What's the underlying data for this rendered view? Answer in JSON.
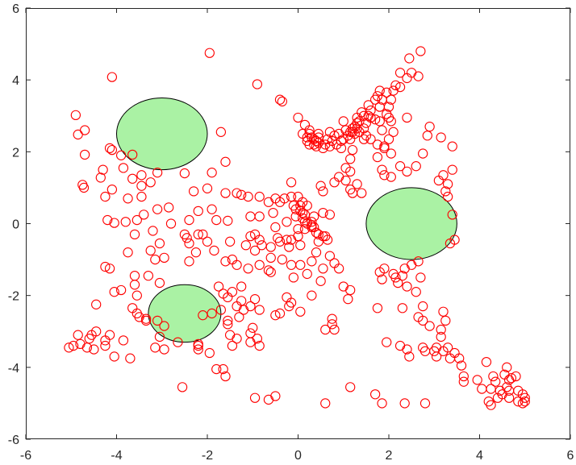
{
  "chart_data": {
    "type": "scatter",
    "title": "",
    "xlabel": "",
    "ylabel": "",
    "xlim": [
      -6,
      6
    ],
    "ylim": [
      -6,
      6
    ],
    "xticks": [
      "-6",
      "-4",
      "-2",
      "0",
      "2",
      "4",
      "6"
    ],
    "yticks": [
      "-6",
      "-4",
      "-2",
      "0",
      "2",
      "4",
      "6"
    ],
    "grid": false,
    "box": true,
    "colors": {
      "marker": "#ff0000",
      "ellipse_fill": "#aaf2a4",
      "ellipse_edge": "#000000",
      "axes": "#262626"
    },
    "obstacles": [
      {
        "name": "ellipse-1",
        "center": [
          -3.0,
          2.5
        ],
        "radius_x": 1.0,
        "radius_y": 1.0
      },
      {
        "name": "ellipse-2",
        "center": [
          2.5,
          0.0
        ],
        "radius_x": 1.0,
        "radius_y": 1.0
      },
      {
        "name": "ellipse-3",
        "center": [
          -2.5,
          -2.5
        ],
        "radius_x": 0.8,
        "radius_y": 0.8
      }
    ],
    "points": [
      [
        -1.95,
        4.75
      ],
      [
        -4.1,
        4.08
      ],
      [
        -0.9,
        3.88
      ],
      [
        -0.4,
        3.45
      ],
      [
        -0.35,
        3.4
      ],
      [
        -4.9,
        3.02
      ],
      [
        -4.7,
        2.6
      ],
      [
        -4.85,
        2.48
      ],
      [
        -1.7,
        2.55
      ],
      [
        -4.7,
        1.92
      ],
      [
        -4.15,
        2.1
      ],
      [
        -4.1,
        2.05
      ],
      [
        -3.9,
        1.9
      ],
      [
        -3.85,
        1.55
      ],
      [
        -3.65,
        1.92
      ],
      [
        -4.3,
        1.5
      ],
      [
        -4.35,
        1.28
      ],
      [
        -3.65,
        1.25
      ],
      [
        -3.45,
        1.35
      ],
      [
        -3.1,
        1.42
      ],
      [
        -2.5,
        1.4
      ],
      [
        -1.9,
        1.42
      ],
      [
        -1.6,
        1.72
      ],
      [
        -4.75,
        1.08
      ],
      [
        -4.72,
        1.0
      ],
      [
        -4.1,
        0.95
      ],
      [
        -3.45,
        1.05
      ],
      [
        -3.25,
        1.15
      ],
      [
        -1.35,
        0.85
      ],
      [
        -1.6,
        0.85
      ],
      [
        -2.0,
        0.98
      ],
      [
        -2.3,
        0.9
      ],
      [
        -2.85,
        0.45
      ],
      [
        -3.45,
        0.75
      ],
      [
        -4.25,
        0.75
      ],
      [
        -3.75,
        0.7
      ],
      [
        -3.1,
        0.4
      ],
      [
        -3.4,
        0.25
      ],
      [
        -3.55,
        0.1
      ],
      [
        -3.8,
        0.05
      ],
      [
        -4.2,
        0.1
      ],
      [
        -4.05,
        0.02
      ],
      [
        -2.8,
        0.0
      ],
      [
        -2.4,
        0.1
      ],
      [
        -1.9,
        0.4
      ],
      [
        -1.8,
        0.1
      ],
      [
        -1.55,
        0.08
      ],
      [
        -2.2,
        0.35
      ],
      [
        -2.2,
        -0.3
      ],
      [
        -2.5,
        -0.3
      ],
      [
        -2.45,
        -0.4
      ],
      [
        -2.4,
        -0.55
      ],
      [
        -2.1,
        -0.3
      ],
      [
        -2.0,
        -0.5
      ],
      [
        -1.85,
        -0.75
      ],
      [
        -2.25,
        -0.8
      ],
      [
        -2.4,
        -1.05
      ],
      [
        -1.5,
        -0.5
      ],
      [
        -3.2,
        -0.2
      ],
      [
        -3.05,
        -0.55
      ],
      [
        -3.25,
        -0.75
      ],
      [
        -3.15,
        -1.0
      ],
      [
        -2.95,
        -0.95
      ],
      [
        -3.6,
        -0.3
      ],
      [
        -3.75,
        -0.8
      ],
      [
        -4.25,
        -1.2
      ],
      [
        -4.15,
        -1.25
      ],
      [
        -3.6,
        -1.45
      ],
      [
        -3.3,
        -1.45
      ],
      [
        -3.05,
        -1.65
      ],
      [
        -3.6,
        -1.7
      ],
      [
        -3.55,
        -2.0
      ],
      [
        -3.9,
        -1.85
      ],
      [
        -4.05,
        -1.9
      ],
      [
        -4.45,
        -2.25
      ],
      [
        -3.65,
        -2.35
      ],
      [
        -3.55,
        -2.5
      ],
      [
        -3.5,
        -2.6
      ],
      [
        -3.35,
        -2.7
      ],
      [
        -3.35,
        -2.65
      ],
      [
        -3.1,
        -2.7
      ],
      [
        -2.95,
        -2.85
      ],
      [
        -3.05,
        -3.15
      ],
      [
        -3.85,
        -3.25
      ],
      [
        -4.15,
        -3.1
      ],
      [
        -4.25,
        -3.25
      ],
      [
        -4.45,
        -3.0
      ],
      [
        -4.55,
        -3.1
      ],
      [
        -4.6,
        -3.2
      ],
      [
        -4.5,
        -3.5
      ],
      [
        -4.25,
        -3.4
      ],
      [
        -4.05,
        -3.7
      ],
      [
        -4.65,
        -3.45
      ],
      [
        -4.85,
        -3.1
      ],
      [
        -4.95,
        -3.4
      ],
      [
        -5.05,
        -3.45
      ],
      [
        -4.8,
        -3.35
      ],
      [
        -3.7,
        -3.75
      ],
      [
        -3.15,
        -3.45
      ],
      [
        -2.95,
        -3.5
      ],
      [
        -2.2,
        -3.35
      ],
      [
        -2.2,
        -3.5
      ],
      [
        -2.2,
        -3.4
      ],
      [
        -1.95,
        -3.6
      ],
      [
        -2.65,
        -3.3
      ],
      [
        -2.55,
        -4.55
      ],
      [
        -1.8,
        -4.05
      ],
      [
        -1.65,
        -4.05
      ],
      [
        -1.6,
        -4.25
      ],
      [
        -1.9,
        -2.5
      ],
      [
        -2.1,
        -2.55
      ],
      [
        -1.7,
        -2.4
      ],
      [
        -1.55,
        -2.7
      ],
      [
        -1.55,
        -2.8
      ],
      [
        -1.5,
        -3.1
      ],
      [
        -1.35,
        -3.2
      ],
      [
        -1.45,
        -3.4
      ],
      [
        -1.05,
        -3.3
      ],
      [
        -1.05,
        -3.05
      ],
      [
        -0.9,
        -3.2
      ],
      [
        -0.85,
        -3.4
      ],
      [
        -1.3,
        -2.6
      ],
      [
        -1.35,
        -2.3
      ],
      [
        -1.55,
        -2.05
      ],
      [
        -1.65,
        -1.95
      ],
      [
        -1.45,
        -1.9
      ],
      [
        -1.25,
        -1.75
      ],
      [
        -1.25,
        -2.15
      ],
      [
        -1.05,
        -2.3
      ],
      [
        -0.95,
        -2.1
      ],
      [
        -0.85,
        -2.4
      ],
      [
        -0.5,
        -2.55
      ],
      [
        -0.4,
        -2.5
      ],
      [
        -0.2,
        -2.3
      ],
      [
        -0.25,
        -2.05
      ],
      [
        -0.1,
        -1.5
      ],
      [
        -0.15,
        -1.15
      ],
      [
        -0.35,
        -1.0
      ],
      [
        -0.6,
        -0.95
      ],
      [
        -0.85,
        -1.15
      ],
      [
        -0.65,
        -1.3
      ],
      [
        -0.6,
        -1.35
      ],
      [
        -1.1,
        -1.25
      ],
      [
        -1.35,
        -1.15
      ],
      [
        -1.45,
        -1.0
      ],
      [
        -1.6,
        -1.05
      ],
      [
        -1.75,
        -1.75
      ],
      [
        -1.15,
        -0.6
      ],
      [
        -0.95,
        -0.3
      ],
      [
        -0.85,
        -0.45
      ],
      [
        -0.8,
        -0.6
      ],
      [
        -0.95,
        -0.75
      ],
      [
        -1.05,
        -0.35
      ],
      [
        -0.6,
        -0.65
      ],
      [
        -0.45,
        -0.4
      ],
      [
        -0.5,
        -0.1
      ],
      [
        -0.25,
        0.05
      ],
      [
        -0.4,
        -0.5
      ],
      [
        -0.25,
        -0.45
      ],
      [
        -0.2,
        -0.65
      ],
      [
        -0.15,
        -0.45
      ],
      [
        0.0,
        -0.35
      ],
      [
        0.05,
        -0.6
      ],
      [
        -0.3,
        0.7
      ],
      [
        -0.4,
        0.6
      ],
      [
        -0.5,
        0.7
      ],
      [
        -0.65,
        0.6
      ],
      [
        -0.15,
        0.75
      ],
      [
        0.0,
        0.75
      ],
      [
        0.1,
        0.6
      ],
      [
        0.2,
        0.5
      ],
      [
        0.1,
        0.3
      ],
      [
        -0.05,
        0.4
      ],
      [
        -0.1,
        0.5
      ],
      [
        0.05,
        0.5
      ],
      [
        0.15,
        0.25
      ],
      [
        0.15,
        0.05
      ],
      [
        0.2,
        0.0
      ],
      [
        0.3,
        -0.05
      ],
      [
        0.35,
        -0.1
      ],
      [
        0.45,
        -0.3
      ],
      [
        0.55,
        -0.35
      ],
      [
        0.45,
        -0.5
      ],
      [
        0.3,
        -0.1
      ],
      [
        0.4,
        -0.25
      ],
      [
        0.65,
        -0.45
      ],
      [
        0.6,
        -0.35
      ],
      [
        0.55,
        0.3
      ],
      [
        0.7,
        0.25
      ],
      [
        0.35,
        0.2
      ],
      [
        0.3,
        0.05
      ],
      [
        0.15,
        -0.15
      ],
      [
        0.0,
        -0.15
      ],
      [
        0.05,
        0.35
      ],
      [
        0.1,
        0.15
      ],
      [
        -0.05,
        0.2
      ],
      [
        -0.15,
        1.15
      ],
      [
        -0.85,
        0.75
      ],
      [
        -1.1,
        0.75
      ],
      [
        -1.25,
        0.8
      ],
      [
        -1.05,
        0.2
      ],
      [
        -0.85,
        0.2
      ],
      [
        -0.55,
        0.3
      ],
      [
        0.55,
        0.9
      ],
      [
        0.5,
        1.05
      ],
      [
        0.8,
        1.15
      ],
      [
        0.9,
        1.3
      ],
      [
        1.05,
        1.2
      ],
      [
        1.15,
        1.45
      ],
      [
        1.05,
        1.55
      ],
      [
        1.15,
        0.95
      ],
      [
        1.2,
        0.85
      ],
      [
        1.4,
        0.85
      ],
      [
        1.3,
        1.1
      ],
      [
        1.15,
        1.8
      ],
      [
        1.2,
        2.05
      ],
      [
        1.15,
        2.35
      ],
      [
        1.2,
        2.55
      ],
      [
        1.3,
        2.65
      ],
      [
        1.35,
        2.85
      ],
      [
        1.3,
        2.95
      ],
      [
        1.4,
        3.1
      ],
      [
        1.55,
        3.3
      ],
      [
        1.7,
        3.45
      ],
      [
        1.85,
        3.45
      ],
      [
        1.8,
        3.25
      ],
      [
        1.6,
        3.15
      ],
      [
        1.55,
        3.0
      ],
      [
        1.5,
        2.8
      ],
      [
        1.45,
        2.65
      ],
      [
        1.5,
        2.45
      ],
      [
        1.6,
        2.35
      ],
      [
        1.75,
        2.2
      ],
      [
        1.9,
        2.15
      ],
      [
        2.0,
        2.35
      ],
      [
        2.1,
        2.55
      ],
      [
        2.05,
        2.85
      ],
      [
        1.95,
        3.05
      ],
      [
        2.0,
        3.25
      ],
      [
        2.05,
        3.45
      ],
      [
        2.1,
        3.7
      ],
      [
        2.25,
        3.8
      ],
      [
        2.4,
        4.05
      ],
      [
        2.5,
        4.2
      ],
      [
        2.45,
        4.6
      ],
      [
        2.7,
        4.8
      ],
      [
        2.65,
        4.1
      ],
      [
        2.25,
        4.2
      ],
      [
        2.15,
        3.85
      ],
      [
        1.95,
        3.65
      ],
      [
        1.8,
        3.7
      ],
      [
        1.75,
        3.55
      ],
      [
        2.0,
        2.95
      ],
      [
        1.8,
        2.85
      ],
      [
        1.85,
        2.6
      ],
      [
        1.9,
        2.1
      ],
      [
        2.05,
        1.95
      ],
      [
        1.75,
        1.85
      ],
      [
        1.85,
        1.5
      ],
      [
        1.9,
        1.35
      ],
      [
        2.05,
        1.3
      ],
      [
        2.25,
        1.6
      ],
      [
        2.4,
        1.45
      ],
      [
        2.6,
        1.6
      ],
      [
        2.75,
        1.95
      ],
      [
        2.85,
        2.45
      ],
      [
        2.9,
        2.7
      ],
      [
        2.4,
        2.95
      ],
      [
        3.15,
        2.4
      ],
      [
        3.4,
        2.15
      ],
      [
        3.4,
        1.5
      ],
      [
        3.2,
        1.35
      ],
      [
        3.1,
        1.2
      ],
      [
        3.3,
        1.1
      ],
      [
        3.25,
        0.9
      ],
      [
        3.3,
        0.75
      ],
      [
        3.4,
        0.25
      ],
      [
        3.45,
        -0.45
      ],
      [
        3.35,
        -0.55
      ],
      [
        2.65,
        -1.05
      ],
      [
        2.5,
        -1.15
      ],
      [
        2.35,
        -1.25
      ],
      [
        2.3,
        -1.45
      ],
      [
        2.15,
        -1.5
      ],
      [
        2.1,
        -1.4
      ],
      [
        1.9,
        -1.25
      ],
      [
        1.8,
        -1.35
      ],
      [
        1.85,
        -1.55
      ],
      [
        2.2,
        -1.65
      ],
      [
        2.4,
        -1.75
      ],
      [
        2.7,
        -1.5
      ],
      [
        2.6,
        -1.9
      ],
      [
        2.3,
        -2.35
      ],
      [
        1.75,
        -2.35
      ],
      [
        2.75,
        -2.3
      ],
      [
        2.65,
        -2.6
      ],
      [
        2.75,
        -2.7
      ],
      [
        2.9,
        -2.85
      ],
      [
        3.25,
        -2.7
      ],
      [
        3.2,
        -2.45
      ],
      [
        3.15,
        -2.95
      ],
      [
        3.15,
        -3.15
      ],
      [
        3.3,
        -3.45
      ],
      [
        3.2,
        -3.55
      ],
      [
        3.05,
        -3.7
      ],
      [
        3.0,
        -3.55
      ],
      [
        3.05,
        -3.45
      ],
      [
        3.35,
        -3.75
      ],
      [
        3.55,
        -3.75
      ],
      [
        3.45,
        -3.6
      ],
      [
        3.6,
        -3.95
      ],
      [
        3.65,
        -4.25
      ],
      [
        3.65,
        -4.4
      ],
      [
        3.95,
        -4.35
      ],
      [
        4.15,
        -3.85
      ],
      [
        4.3,
        -4.25
      ],
      [
        4.35,
        -4.4
      ],
      [
        4.45,
        -4.65
      ],
      [
        4.5,
        -4.75
      ],
      [
        4.6,
        -4.55
      ],
      [
        4.65,
        -4.35
      ],
      [
        4.6,
        -4.0
      ],
      [
        4.7,
        -4.3
      ],
      [
        4.55,
        -4.2
      ],
      [
        4.8,
        -4.25
      ],
      [
        4.65,
        -4.65
      ],
      [
        4.85,
        -4.65
      ],
      [
        4.95,
        -4.75
      ],
      [
        5.0,
        -4.85
      ],
      [
        5.0,
        -4.95
      ],
      [
        4.95,
        -5.0
      ],
      [
        4.85,
        -4.95
      ],
      [
        4.65,
        -4.85
      ],
      [
        4.4,
        -4.85
      ],
      [
        4.25,
        -4.6
      ],
      [
        4.2,
        -4.95
      ],
      [
        4.25,
        -5.05
      ],
      [
        4.05,
        -4.6
      ],
      [
        2.8,
        -5.0
      ],
      [
        2.35,
        -5.0
      ],
      [
        1.85,
        -5.0
      ],
      [
        0.6,
        -5.0
      ],
      [
        1.7,
        -4.75
      ],
      [
        1.95,
        -3.3
      ],
      [
        2.25,
        -3.4
      ],
      [
        2.4,
        -3.5
      ],
      [
        2.75,
        -3.45
      ],
      [
        2.45,
        -3.7
      ],
      [
        2.8,
        -3.55
      ],
      [
        1.15,
        -4.55
      ],
      [
        0.8,
        -2.95
      ],
      [
        0.75,
        -2.65
      ],
      [
        0.6,
        -2.95
      ],
      [
        0.75,
        -2.8
      ],
      [
        1.1,
        -2.1
      ],
      [
        1.15,
        -1.85
      ],
      [
        1.0,
        -1.75
      ],
      [
        0.9,
        -1.25
      ],
      [
        0.8,
        -1.1
      ],
      [
        0.7,
        -0.9
      ],
      [
        0.55,
        -1.25
      ],
      [
        0.5,
        -1.6
      ],
      [
        0.2,
        -1.4
      ],
      [
        0.05,
        -1.15
      ],
      [
        0.3,
        -1.05
      ],
      [
        0.4,
        -0.8
      ],
      [
        0.3,
        -2.0
      ],
      [
        0.05,
        -2.45
      ],
      [
        -0.15,
        -2.2
      ],
      [
        -0.5,
        -4.8
      ],
      [
        -0.65,
        -4.9
      ],
      [
        -0.95,
        -4.85
      ],
      [
        -1.0,
        -2.9
      ],
      [
        -1.2,
        -2.4
      ],
      [
        0.0,
        2.95
      ],
      [
        0.15,
        2.75
      ],
      [
        0.25,
        2.6
      ],
      [
        0.2,
        2.4
      ],
      [
        0.2,
        2.3
      ],
      [
        0.25,
        2.2
      ],
      [
        0.3,
        2.4
      ],
      [
        0.35,
        2.2
      ],
      [
        0.4,
        2.15
      ],
      [
        0.45,
        2.25
      ],
      [
        0.55,
        2.1
      ],
      [
        0.6,
        2.2
      ],
      [
        0.7,
        2.15
      ],
      [
        0.75,
        2.3
      ],
      [
        0.8,
        2.45
      ],
      [
        0.85,
        2.2
      ],
      [
        0.95,
        2.3
      ],
      [
        1.0,
        2.35
      ],
      [
        1.1,
        2.45
      ],
      [
        1.15,
        2.55
      ],
      [
        1.2,
        2.65
      ],
      [
        1.25,
        2.7
      ],
      [
        1.35,
        2.55
      ],
      [
        0.45,
        2.5
      ],
      [
        0.35,
        2.35
      ],
      [
        0.4,
        2.3
      ],
      [
        0.45,
        2.4
      ],
      [
        0.25,
        2.5
      ],
      [
        0.7,
        2.55
      ],
      [
        0.9,
        2.5
      ],
      [
        1.05,
        2.6
      ],
      [
        1.3,
        2.8
      ],
      [
        1.45,
        3.0
      ],
      [
        1.6,
        2.95
      ],
      [
        1.7,
        2.9
      ],
      [
        1.0,
        2.85
      ],
      [
        1.45,
        2.35
      ],
      [
        0.95,
        2.1
      ],
      [
        1.25,
        2.5
      ],
      [
        0.1,
        2.5
      ],
      [
        0.65,
        2.35
      ]
    ]
  }
}
